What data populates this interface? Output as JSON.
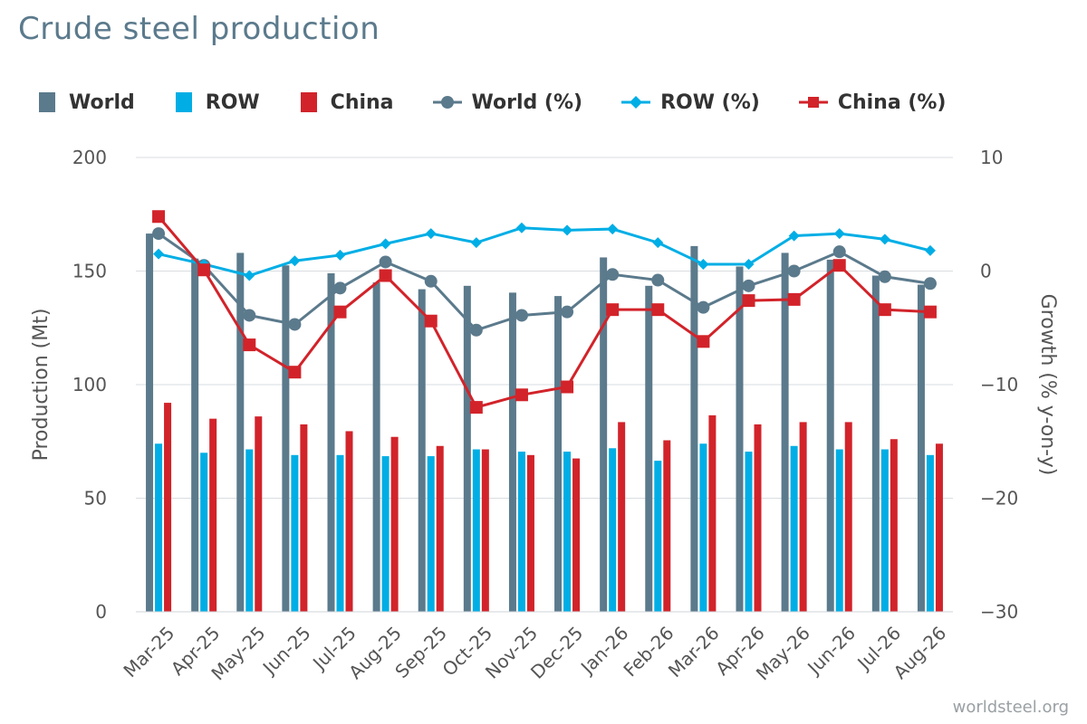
{
  "chart_data": {
    "type": "bar+line",
    "title": "Crude steel production",
    "y_left_label": "Production (Mt)",
    "y_right_label": "Growth (% y-on-y)",
    "y_left_lim": [
      0,
      200
    ],
    "y_left_ticks": [
      "0",
      "50",
      "100",
      "150",
      "200"
    ],
    "y_right_lim": [
      -30,
      10
    ],
    "y_right_ticks": [
      "−30",
      "−20",
      "−10",
      "0",
      "10"
    ],
    "grid": true,
    "legend_position": "top",
    "categories": [
      "Mar-25",
      "Apr-25",
      "May-25",
      "Jun-25",
      "Jul-25",
      "Aug-25",
      "Sep-25",
      "Oct-25",
      "Nov-25",
      "Dec-25",
      "Jan-26",
      "Feb-26",
      "Mar-26",
      "Apr-26",
      "May-26",
      "Jun-26",
      "Jul-26",
      "Aug-26"
    ],
    "bar_series": [
      {
        "name": "World",
        "color": "#5b7a8c",
        "values": [
          166.5,
          155.5,
          158,
          152.5,
          149,
          145,
          142,
          143.5,
          140.5,
          139,
          156,
          143.5,
          161,
          152,
          158,
          155,
          148,
          144
        ]
      },
      {
        "name": "ROW",
        "color": "#00aee5",
        "values": [
          74,
          70,
          71.5,
          69,
          69,
          68.5,
          68.5,
          71.5,
          70.5,
          70.5,
          72,
          66.5,
          74,
          70.5,
          73,
          71.5,
          71.5,
          69
        ]
      },
      {
        "name": "China",
        "color": "#d2232a",
        "values": [
          92,
          85,
          86,
          82.5,
          79.5,
          77,
          73,
          71.5,
          69,
          67.5,
          83.5,
          75.5,
          86.5,
          82.5,
          83.5,
          83.5,
          76,
          74
        ]
      }
    ],
    "line_series": [
      {
        "name": "World (%)",
        "color": "#5b7a8c",
        "marker": "circle",
        "values": [
          3.3,
          0.5,
          -3.9,
          -4.7,
          -1.5,
          0.8,
          -0.9,
          -5.2,
          -3.9,
          -3.6,
          -0.3,
          -0.8,
          -3.2,
          -1.3,
          0.0,
          1.7,
          -0.5,
          -1.1
        ]
      },
      {
        "name": "ROW (%)",
        "color": "#00aee5",
        "marker": "diamond",
        "values": [
          1.5,
          0.6,
          -0.4,
          0.9,
          1.4,
          2.4,
          3.3,
          2.5,
          3.8,
          3.6,
          3.7,
          2.5,
          0.6,
          0.6,
          3.1,
          3.3,
          2.8,
          1.8
        ]
      },
      {
        "name": "China (%)",
        "color": "#d2232a",
        "marker": "square",
        "values": [
          4.8,
          0.1,
          -6.5,
          -8.9,
          -3.6,
          -0.4,
          -4.4,
          -12.0,
          -10.9,
          -10.2,
          -3.4,
          -3.4,
          -6.2,
          -2.6,
          -2.5,
          0.5,
          -3.4,
          -3.6
        ]
      }
    ]
  },
  "source_credit": "worldsteel.org"
}
